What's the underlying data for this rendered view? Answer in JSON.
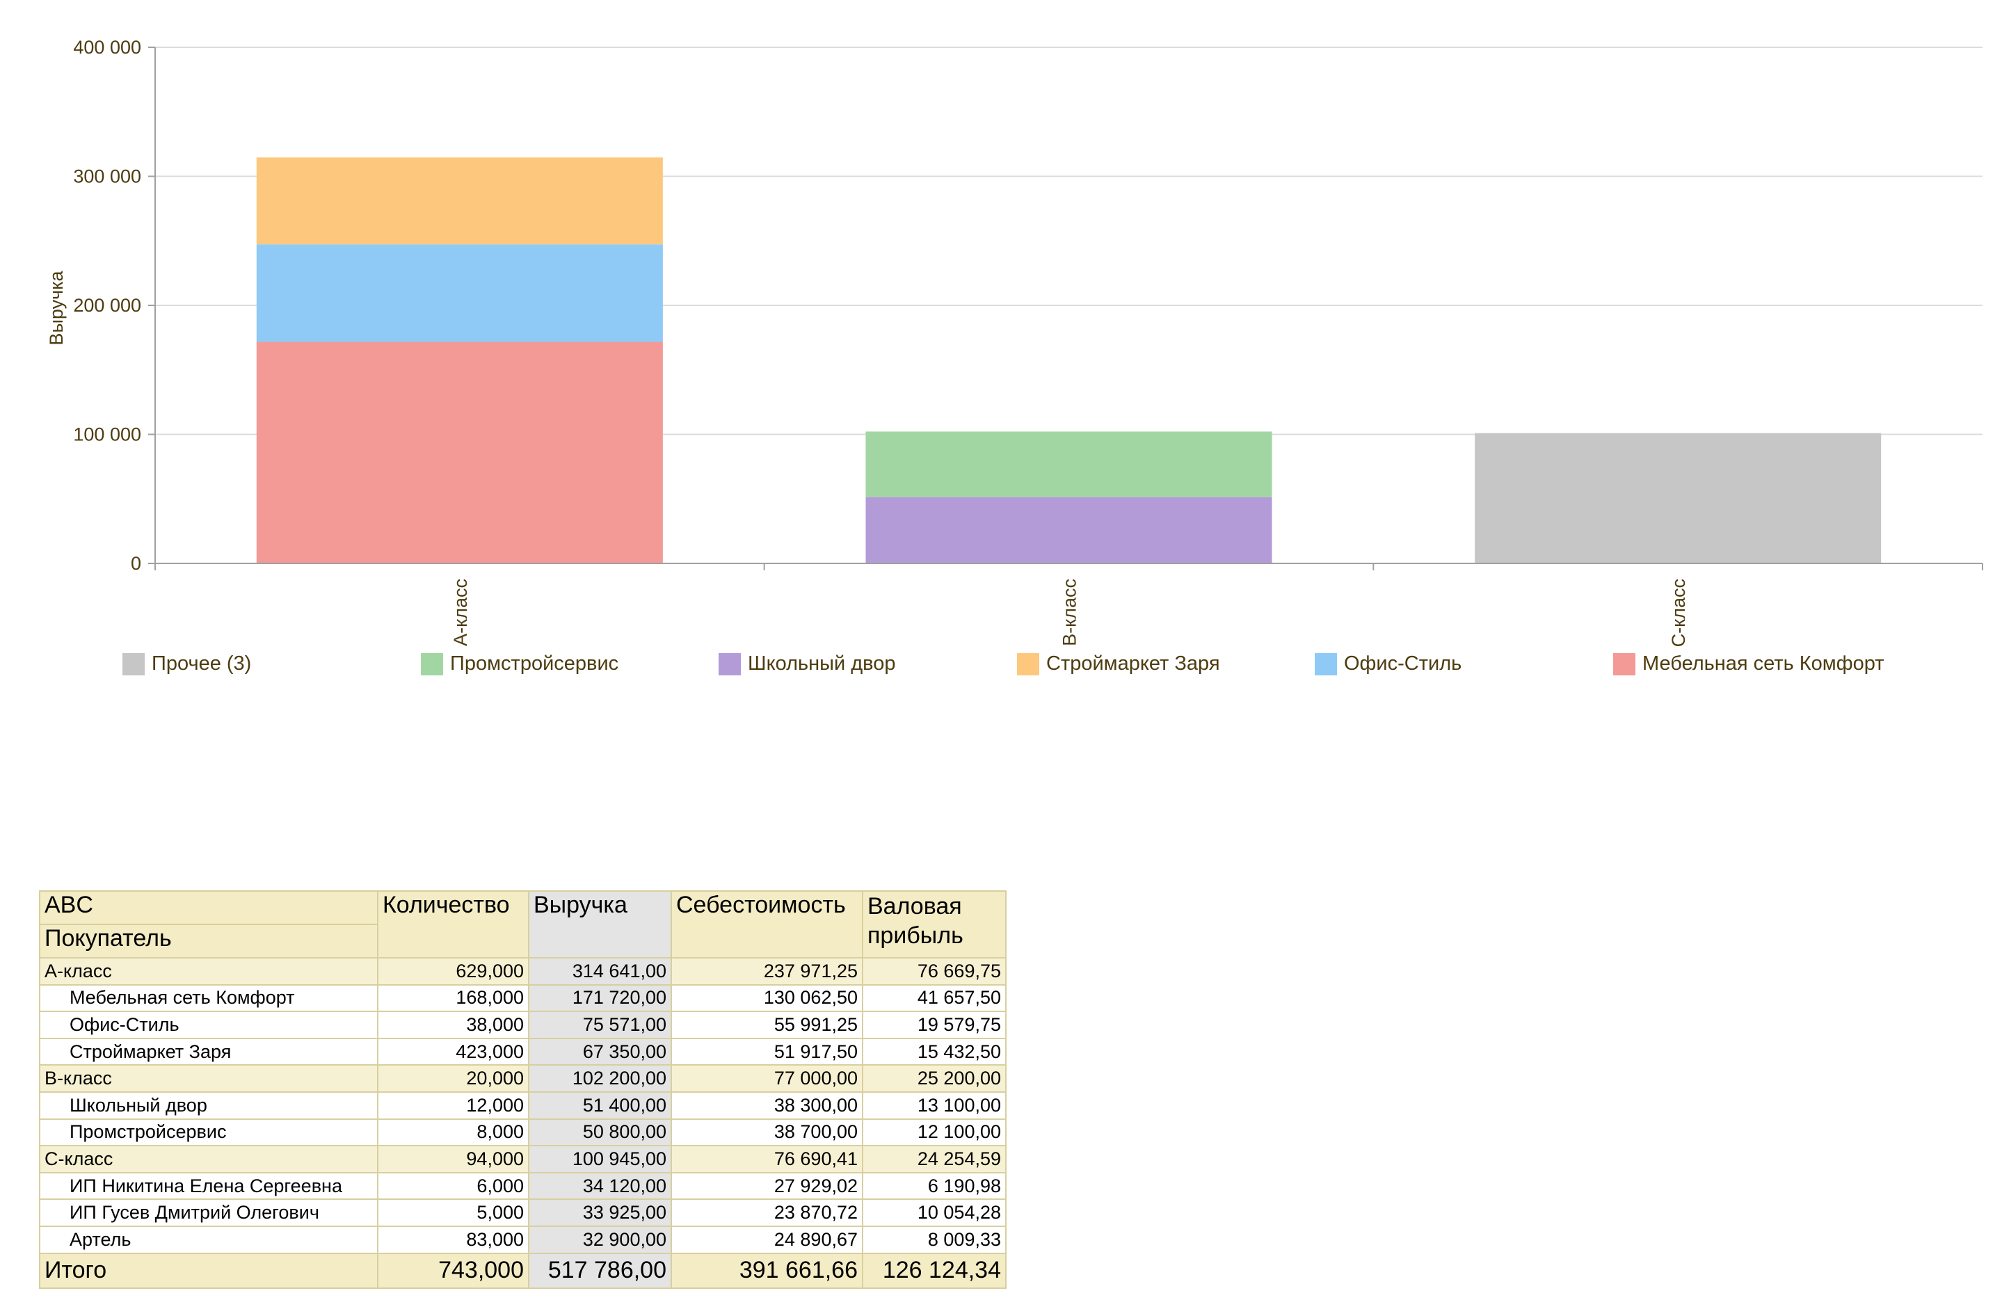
{
  "chart_data": {
    "type": "bar",
    "stacked": true,
    "ylabel": "Выручка",
    "xlabel": "",
    "ylim": [
      0,
      400000
    ],
    "yticks": [
      "0",
      "100 000",
      "200 000",
      "300 000",
      "400 000"
    ],
    "ytick_values": [
      0,
      100000,
      200000,
      300000,
      400000
    ],
    "grid": true,
    "legend_position": "bottom",
    "categories": [
      "А-класс",
      "В-класс",
      "С-класс"
    ],
    "series": [
      {
        "name": "Мебельная сеть Комфорт",
        "color": "#f39a96",
        "values": [
          171720,
          0,
          0
        ]
      },
      {
        "name": "Офис-Стиль",
        "color": "#8fcaf6",
        "values": [
          75571,
          0,
          0
        ]
      },
      {
        "name": "Строймаркет Заря",
        "color": "#fdc87e",
        "values": [
          67350,
          0,
          0
        ]
      },
      {
        "name": "Школьный двор",
        "color": "#b39bd8",
        "values": [
          0,
          51400,
          0
        ]
      },
      {
        "name": "Промстройсервис",
        "color": "#a1d6a3",
        "values": [
          0,
          50800,
          0
        ]
      },
      {
        "name": "Прочее (3)",
        "color": "#c6c6c6",
        "values": [
          0,
          0,
          100945
        ]
      }
    ],
    "legend_order": [
      "Прочее (3)",
      "Промстройсервис",
      "Школьный двор",
      "Строймаркет Заря",
      "Офис-Стиль",
      "Мебельная сеть Комфорт"
    ]
  },
  "table": {
    "headers": {
      "abc": "ABC",
      "buyer": "Покупатель",
      "qty": "Количество",
      "revenue": "Выручка",
      "cost": "Себестоимость",
      "profit": "Валовая прибыль"
    },
    "rows": [
      {
        "type": "group",
        "name": "А-класс",
        "qty": "629,000",
        "revenue": "314 641,00",
        "cost": "237 971,25",
        "profit": "76 669,75"
      },
      {
        "type": "detail",
        "name": "Мебельная сеть Комфорт",
        "qty": "168,000",
        "revenue": "171 720,00",
        "cost": "130 062,50",
        "profit": "41 657,50"
      },
      {
        "type": "detail",
        "name": "Офис-Стиль",
        "qty": "38,000",
        "revenue": "75 571,00",
        "cost": "55 991,25",
        "profit": "19 579,75"
      },
      {
        "type": "detail",
        "name": "Строймаркет Заря",
        "qty": "423,000",
        "revenue": "67 350,00",
        "cost": "51 917,50",
        "profit": "15 432,50"
      },
      {
        "type": "group",
        "name": "В-класс",
        "qty": "20,000",
        "revenue": "102 200,00",
        "cost": "77 000,00",
        "profit": "25 200,00"
      },
      {
        "type": "detail",
        "name": "Школьный двор",
        "qty": "12,000",
        "revenue": "51 400,00",
        "cost": "38 300,00",
        "profit": "13 100,00"
      },
      {
        "type": "detail",
        "name": "Промстройсервис",
        "qty": "8,000",
        "revenue": "50 800,00",
        "cost": "38 700,00",
        "profit": "12 100,00"
      },
      {
        "type": "group",
        "name": "С-класс",
        "qty": "94,000",
        "revenue": "100 945,00",
        "cost": "76 690,41",
        "profit": "24 254,59"
      },
      {
        "type": "detail",
        "name": "ИП Никитина Елена Сергеевна",
        "qty": "6,000",
        "revenue": "34 120,00",
        "cost": "27 929,02",
        "profit": "6 190,98"
      },
      {
        "type": "detail",
        "name": "ИП Гусев Дмитрий Олегович",
        "qty": "5,000",
        "revenue": "33 925,00",
        "cost": "23 870,72",
        "profit": "10 054,28"
      },
      {
        "type": "detail",
        "name": "Артель",
        "qty": "83,000",
        "revenue": "32 900,00",
        "cost": "24 890,67",
        "profit": "8 009,33"
      }
    ],
    "total": {
      "name": "Итого",
      "qty": "743,000",
      "revenue": "517 786,00",
      "cost": "391 661,66",
      "profit": "126 124,34"
    }
  }
}
